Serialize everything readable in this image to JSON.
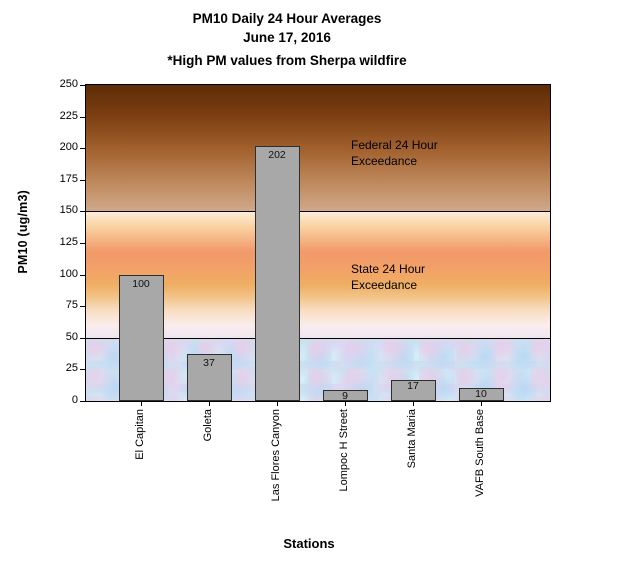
{
  "header": {
    "title_line1": "PM10 Daily 24 Hour Averages",
    "title_line2": "June 17, 2016",
    "note": "*High PM values from Sherpa wildfire"
  },
  "chart_data": {
    "type": "bar",
    "title": "PM10 Daily 24 Hour Averages",
    "subtitle": "June 17, 2016",
    "note": "*High PM values from Sherpa wildfire",
    "categories": [
      "El Capitan",
      "Goleta",
      "Las Flores Canyon",
      "Lompoc H Street",
      "Santa Maria",
      "VAFB South Base"
    ],
    "values": [
      100,
      37,
      202,
      9,
      17,
      10
    ],
    "xlabel": "Stations",
    "ylabel": "PM10 (ug/m3)",
    "ylim": [
      0,
      250
    ],
    "yticks": [
      0,
      25,
      50,
      75,
      100,
      125,
      150,
      175,
      200,
      225,
      250
    ],
    "grid": false,
    "legend_position": "none",
    "data_labels": "inside-top",
    "annotations": [
      {
        "line1": "Federal 24 Hour",
        "line2": "Exceedance",
        "threshold_value": 150
      },
      {
        "line1": "State 24 Hour",
        "line2": "Exceedance",
        "threshold_value": 50
      }
    ],
    "background_bands": [
      {
        "range": [
          150,
          250
        ],
        "meaning": "above federal 24 hour exceedance",
        "style": "brown gradient"
      },
      {
        "range": [
          50,
          150
        ],
        "meaning": "above state 24 hour exceedance",
        "style": "orange gradient"
      },
      {
        "range": [
          0,
          50
        ],
        "meaning": "below state standard",
        "style": "mottled blue texture"
      }
    ]
  },
  "colors": {
    "bar_fill": "#a8a8a8",
    "bar_border": "#2e2e2e",
    "threshold_line": "#000000",
    "federal_band_top": "#5e2c06",
    "federal_band_bottom": "#cfa98b",
    "state_band_peak": "#f2996a",
    "normal_band_base": "#cde0f0"
  }
}
